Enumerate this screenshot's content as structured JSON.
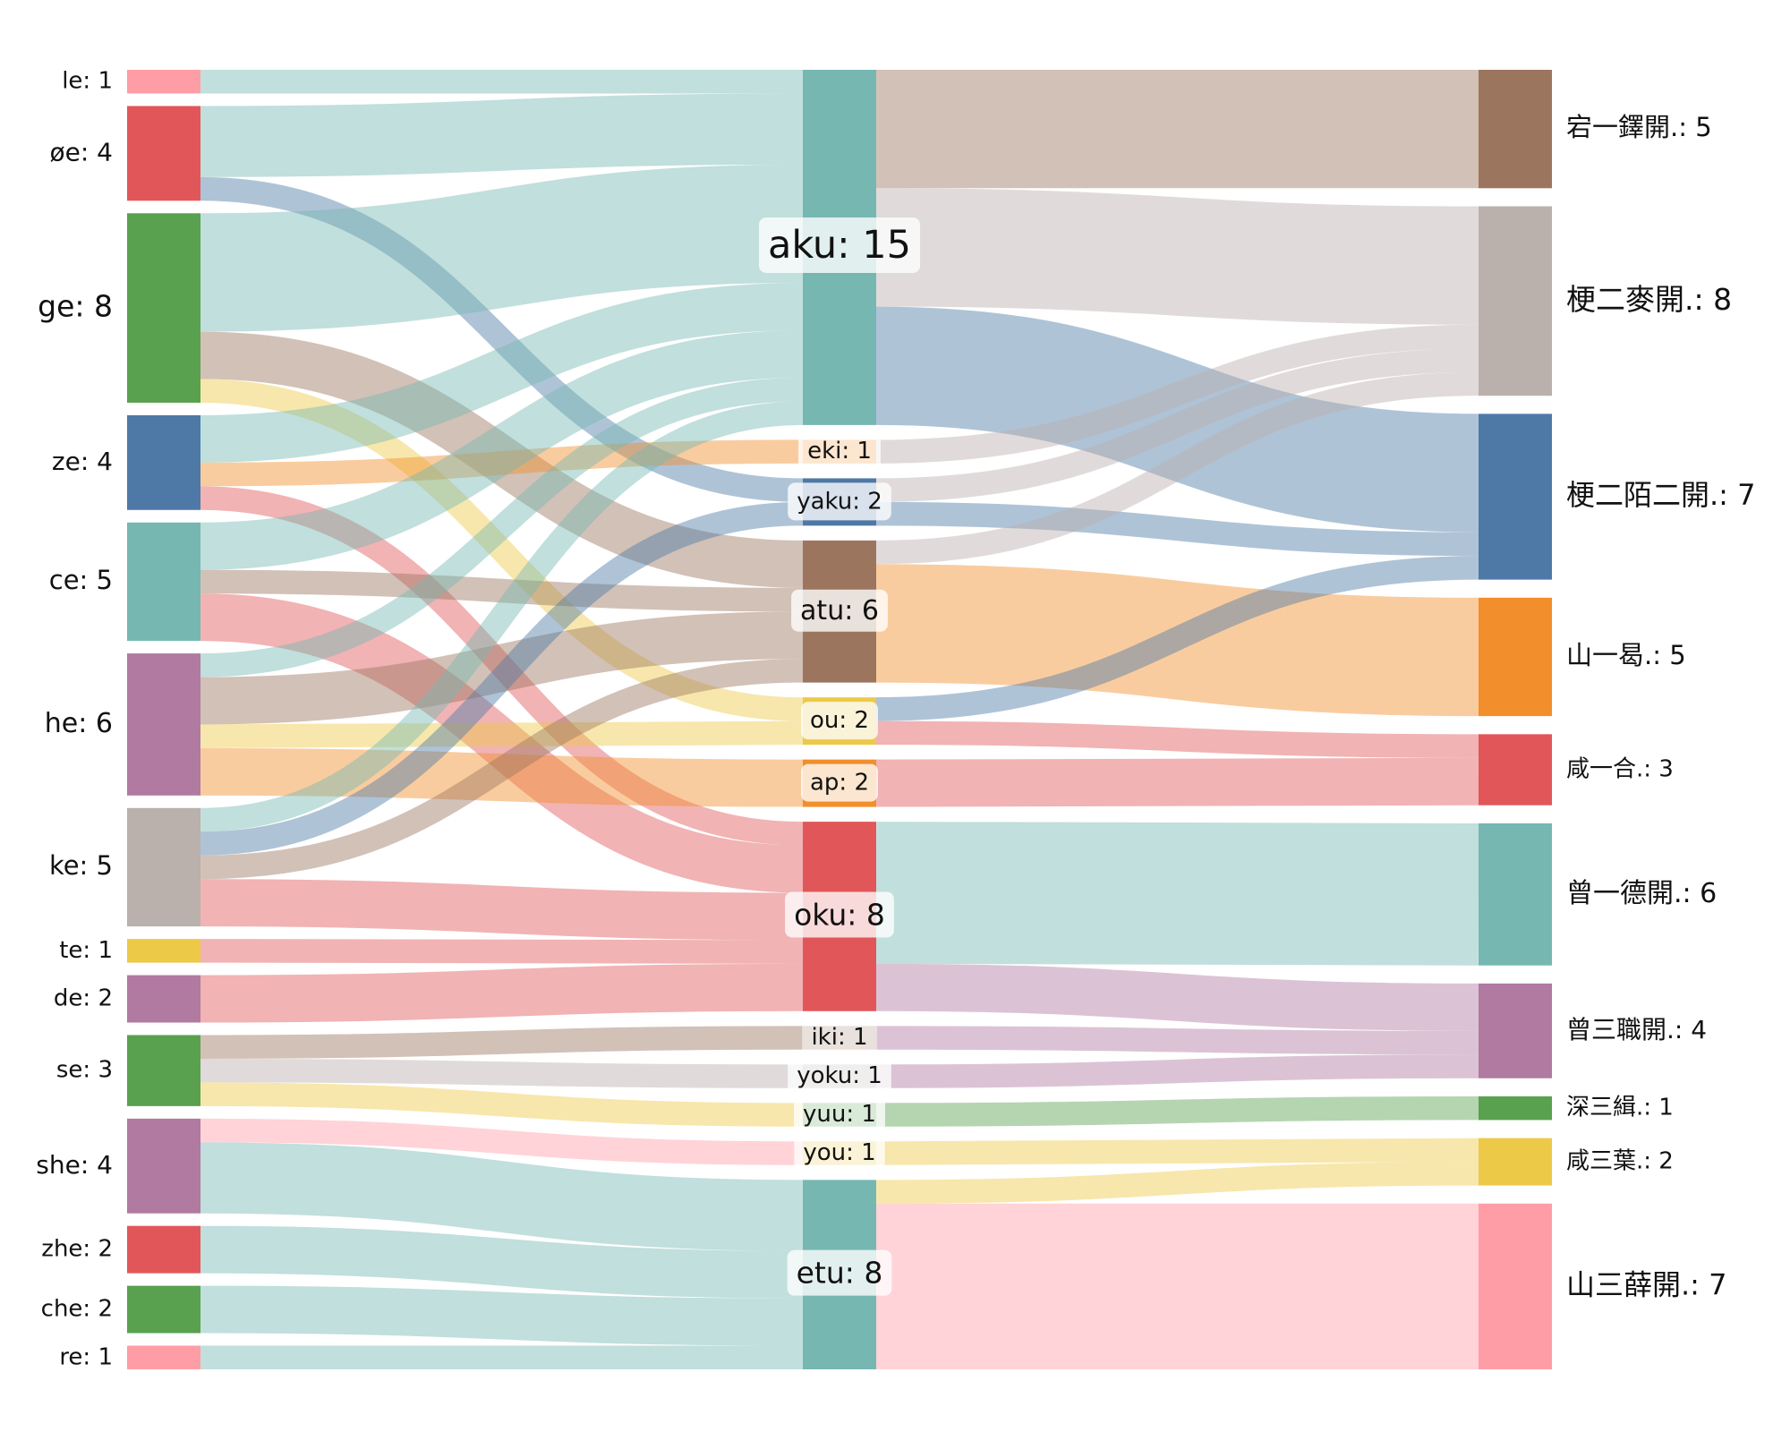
{
  "chart_data": {
    "type": "sankey",
    "columns": [
      [
        {
          "id": "le",
          "label": "le: 1",
          "value": 1,
          "color": "#FF9DA7"
        },
        {
          "id": "oe",
          "label": "øe: 4",
          "value": 4,
          "color": "#E15759"
        },
        {
          "id": "ge",
          "label": "ge: 8",
          "value": 8,
          "color": "#59A14F"
        },
        {
          "id": "ze",
          "label": "ze: 4",
          "value": 4,
          "color": "#4E79A7"
        },
        {
          "id": "ce",
          "label": "ce: 5",
          "value": 5,
          "color": "#76B7B2"
        },
        {
          "id": "he",
          "label": "he: 6",
          "value": 6,
          "color": "#B07AA1"
        },
        {
          "id": "ke",
          "label": "ke: 5",
          "value": 5,
          "color": "#BAB0AC"
        },
        {
          "id": "te",
          "label": "te: 1",
          "value": 1,
          "color": "#EDC948"
        },
        {
          "id": "de",
          "label": "de: 2",
          "value": 2,
          "color": "#B07AA1"
        },
        {
          "id": "se",
          "label": "se: 3",
          "value": 3,
          "color": "#59A14F"
        },
        {
          "id": "she",
          "label": "she: 4",
          "value": 4,
          "color": "#B07AA1"
        },
        {
          "id": "zhe",
          "label": "zhe: 2",
          "value": 2,
          "color": "#E15759"
        },
        {
          "id": "che",
          "label": "che: 2",
          "value": 2,
          "color": "#59A14F"
        },
        {
          "id": "re",
          "label": "re: 1",
          "value": 1,
          "color": "#FF9DA7"
        }
      ],
      [
        {
          "id": "aku",
          "label": "aku: 15",
          "value": 15,
          "color": "#76B7B2"
        },
        {
          "id": "eki",
          "label": "eki: 1",
          "value": 1,
          "color": "#F28E2B"
        },
        {
          "id": "yaku",
          "label": "yaku: 2",
          "value": 2,
          "color": "#4E79A7"
        },
        {
          "id": "atu",
          "label": "atu: 6",
          "value": 6,
          "color": "#9C755F"
        },
        {
          "id": "ou",
          "label": "ou: 2",
          "value": 2,
          "color": "#EDC948"
        },
        {
          "id": "ap",
          "label": "ap: 2",
          "value": 2,
          "color": "#F28E2B"
        },
        {
          "id": "oku",
          "label": "oku: 8",
          "value": 8,
          "color": "#E15759"
        },
        {
          "id": "iki",
          "label": "iki: 1",
          "value": 1,
          "color": "#9C755F"
        },
        {
          "id": "yoku",
          "label": "yoku: 1",
          "value": 1,
          "color": "#BAB0AC"
        },
        {
          "id": "yuu",
          "label": "yuu: 1",
          "value": 1,
          "color": "#59A14F"
        },
        {
          "id": "you",
          "label": "you: 1",
          "value": 1,
          "color": "#EDC948"
        },
        {
          "id": "etu",
          "label": "etu: 8",
          "value": 8,
          "color": "#76B7B2"
        }
      ],
      [
        {
          "id": "r1",
          "label": "宕一鐸開.: 5",
          "value": 5,
          "color": "#9C755F"
        },
        {
          "id": "r2",
          "label": "梗二麥開.: 8",
          "value": 8,
          "color": "#BAB0AC"
        },
        {
          "id": "r3",
          "label": "梗二陌二開.: 7",
          "value": 7,
          "color": "#4E79A7"
        },
        {
          "id": "r4",
          "label": "山一曷.: 5",
          "value": 5,
          "color": "#F28E2B"
        },
        {
          "id": "r5",
          "label": "咸一合.: 3",
          "value": 3,
          "color": "#E15759"
        },
        {
          "id": "r6",
          "label": "曾一德開.: 6",
          "value": 6,
          "color": "#76B7B2"
        },
        {
          "id": "r7",
          "label": "曾三職開.: 4",
          "value": 4,
          "color": "#B07AA1"
        },
        {
          "id": "r8",
          "label": "深三緝.: 1",
          "value": 1,
          "color": "#59A14F"
        },
        {
          "id": "r9",
          "label": "咸三葉.: 2",
          "value": 2,
          "color": "#EDC948"
        },
        {
          "id": "r10",
          "label": "山三薛開.: 7",
          "value": 7,
          "color": "#FF9DA7"
        }
      ]
    ],
    "links": [
      {
        "source": "le",
        "target": "aku",
        "value": 1,
        "color": "#76B7B2"
      },
      {
        "source": "oe",
        "target": "aku",
        "value": 3,
        "color": "#76B7B2"
      },
      {
        "source": "oe",
        "target": "yaku",
        "value": 1,
        "color": "#4E79A7"
      },
      {
        "source": "ge",
        "target": "aku",
        "value": 5,
        "color": "#76B7B2"
      },
      {
        "source": "ge",
        "target": "atu",
        "value": 2,
        "color": "#9C755F"
      },
      {
        "source": "ge",
        "target": "ou",
        "value": 1,
        "color": "#EDC948"
      },
      {
        "source": "ze",
        "target": "aku",
        "value": 2,
        "color": "#76B7B2"
      },
      {
        "source": "ze",
        "target": "eki",
        "value": 1,
        "color": "#F28E2B"
      },
      {
        "source": "ze",
        "target": "oku",
        "value": 1,
        "color": "#E15759"
      },
      {
        "source": "ce",
        "target": "aku",
        "value": 2,
        "color": "#76B7B2"
      },
      {
        "source": "ce",
        "target": "atu",
        "value": 1,
        "color": "#9C755F"
      },
      {
        "source": "ce",
        "target": "oku",
        "value": 2,
        "color": "#E15759"
      },
      {
        "source": "he",
        "target": "aku",
        "value": 1,
        "color": "#76B7B2"
      },
      {
        "source": "he",
        "target": "atu",
        "value": 2,
        "color": "#9C755F"
      },
      {
        "source": "he",
        "target": "ou",
        "value": 1,
        "color": "#EDC948"
      },
      {
        "source": "he",
        "target": "ap",
        "value": 2,
        "color": "#F28E2B"
      },
      {
        "source": "ke",
        "target": "aku",
        "value": 1,
        "color": "#76B7B2"
      },
      {
        "source": "ke",
        "target": "yaku",
        "value": 1,
        "color": "#4E79A7"
      },
      {
        "source": "ke",
        "target": "atu",
        "value": 1,
        "color": "#9C755F"
      },
      {
        "source": "ke",
        "target": "oku",
        "value": 2,
        "color": "#E15759"
      },
      {
        "source": "te",
        "target": "oku",
        "value": 1,
        "color": "#E15759"
      },
      {
        "source": "de",
        "target": "oku",
        "value": 2,
        "color": "#E15759"
      },
      {
        "source": "se",
        "target": "iki",
        "value": 1,
        "color": "#9C755F"
      },
      {
        "source": "se",
        "target": "yoku",
        "value": 1,
        "color": "#BAB0AC"
      },
      {
        "source": "se",
        "target": "yuu",
        "value": 1,
        "color": "#EDC948"
      },
      {
        "source": "she",
        "target": "you",
        "value": 1,
        "color": "#FF9DA7"
      },
      {
        "source": "she",
        "target": "etu",
        "value": 3,
        "color": "#76B7B2"
      },
      {
        "source": "zhe",
        "target": "etu",
        "value": 2,
        "color": "#76B7B2"
      },
      {
        "source": "che",
        "target": "etu",
        "value": 2,
        "color": "#76B7B2"
      },
      {
        "source": "re",
        "target": "etu",
        "value": 1,
        "color": "#76B7B2"
      },
      {
        "source": "aku",
        "target": "r1",
        "value": 5,
        "color": "#9C755F"
      },
      {
        "source": "aku",
        "target": "r2",
        "value": 5,
        "color": "#BAB0AC"
      },
      {
        "source": "aku",
        "target": "r3",
        "value": 5,
        "color": "#4E79A7"
      },
      {
        "source": "eki",
        "target": "r2",
        "value": 1,
        "color": "#BAB0AC"
      },
      {
        "source": "yaku",
        "target": "r2",
        "value": 1,
        "color": "#BAB0AC"
      },
      {
        "source": "yaku",
        "target": "r3",
        "value": 1,
        "color": "#4E79A7"
      },
      {
        "source": "atu",
        "target": "r2",
        "value": 1,
        "color": "#BAB0AC"
      },
      {
        "source": "atu",
        "target": "r4",
        "value": 5,
        "color": "#F28E2B"
      },
      {
        "source": "ou",
        "target": "r3",
        "value": 1,
        "color": "#4E79A7"
      },
      {
        "source": "ou",
        "target": "r5",
        "value": 1,
        "color": "#E15759"
      },
      {
        "source": "ap",
        "target": "r5",
        "value": 2,
        "color": "#E15759"
      },
      {
        "source": "oku",
        "target": "r6",
        "value": 6,
        "color": "#76B7B2"
      },
      {
        "source": "oku",
        "target": "r7",
        "value": 2,
        "color": "#B07AA1"
      },
      {
        "source": "iki",
        "target": "r7",
        "value": 1,
        "color": "#B07AA1"
      },
      {
        "source": "yoku",
        "target": "r7",
        "value": 1,
        "color": "#B07AA1"
      },
      {
        "source": "yuu",
        "target": "r8",
        "value": 1,
        "color": "#59A14F"
      },
      {
        "source": "you",
        "target": "r9",
        "value": 1,
        "color": "#EDC948"
      },
      {
        "source": "etu",
        "target": "r9",
        "value": 1,
        "color": "#EDC948"
      },
      {
        "source": "etu",
        "target": "r10",
        "value": 7,
        "color": "#FF9DA7"
      }
    ]
  }
}
